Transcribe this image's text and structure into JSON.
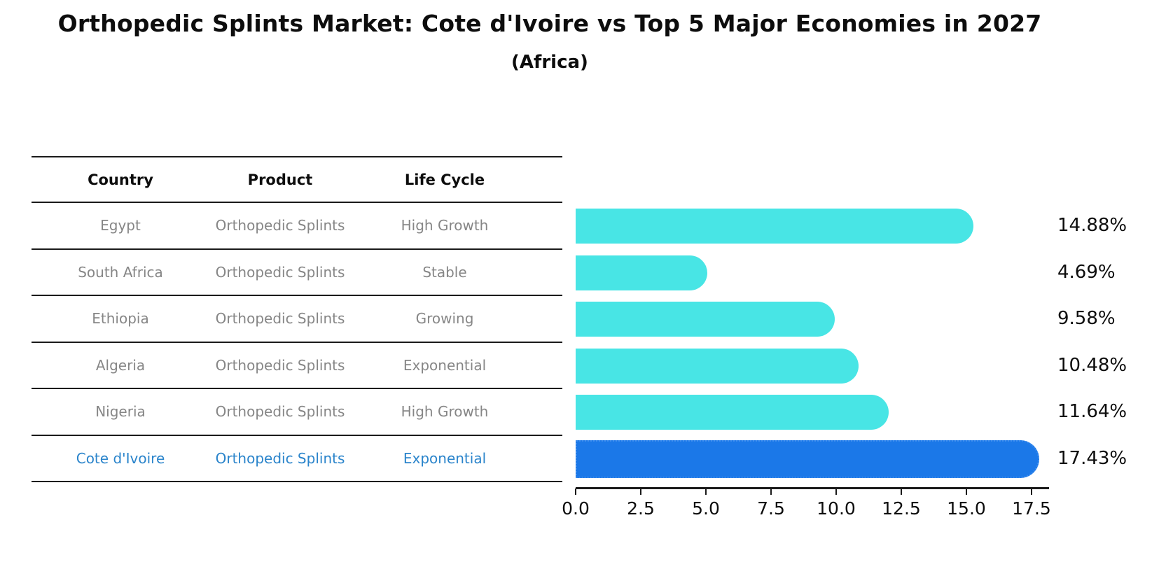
{
  "title": "Orthopedic Splints Market: Cote d'Ivoire vs Top 5 Major Economies in 2027",
  "subtitle": "(Africa)",
  "table": {
    "headers": [
      "Country",
      "Product",
      "Life Cycle"
    ],
    "rows": [
      {
        "country": "Egypt",
        "product": "Orthopedic Splints",
        "life_cycle": "High Growth",
        "highlight": false
      },
      {
        "country": "South Africa",
        "product": "Orthopedic Splints",
        "life_cycle": "Stable",
        "highlight": false
      },
      {
        "country": "Ethiopia",
        "product": "Orthopedic Splints",
        "life_cycle": "Growing",
        "highlight": false
      },
      {
        "country": "Algeria",
        "product": "Orthopedic Splints",
        "life_cycle": "Exponential",
        "highlight": false
      },
      {
        "country": "Nigeria",
        "product": "Orthopedic Splints",
        "life_cycle": "High Growth",
        "highlight": false
      },
      {
        "country": "Cote d'Ivoire",
        "product": "Orthopedic Splints",
        "life_cycle": "Exponential",
        "highlight": true
      }
    ]
  },
  "chart_data": {
    "type": "bar",
    "orientation": "horizontal",
    "categories": [
      "Egypt",
      "South Africa",
      "Ethiopia",
      "Algeria",
      "Nigeria",
      "Cote d'Ivoire"
    ],
    "values": [
      14.88,
      4.69,
      9.58,
      10.48,
      11.64,
      17.43
    ],
    "value_labels": [
      "14.88%",
      "4.69%",
      "9.58%",
      "10.48%",
      "11.64%",
      "17.43%"
    ],
    "title": "Orthopedic Splints Market: Cote d'Ivoire vs Top 5 Major Economies in 2027",
    "subtitle": "(Africa)",
    "xlabel": "",
    "ylabel": "",
    "x_ticks": [
      "0.0",
      "2.5",
      "5.0",
      "7.5",
      "10.0",
      "12.5",
      "15.0",
      "17.5"
    ],
    "xlim": [
      0,
      18.15
    ],
    "grid": false,
    "legend": "none",
    "highlight_index": 5,
    "bar_color": "#48E5E5",
    "highlight_bar_color": "#1B78E8",
    "highlight_text_color": "#2A84CB",
    "text_color_muted": "#868686"
  }
}
